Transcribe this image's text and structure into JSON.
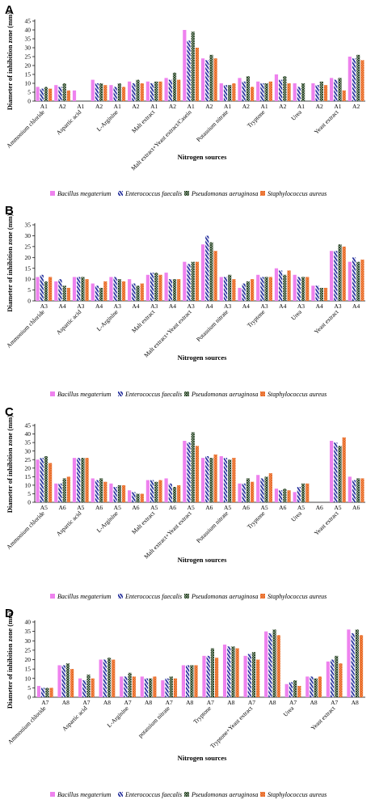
{
  "series_names": [
    "Bacillus megaterium",
    "Enterococcus faecalis",
    "Pseudomonas aeruginosa",
    "Staphylococcus aureus"
  ],
  "colors": {
    "bacillus": "#ee82ee",
    "enterococcus": "#1f2a9a",
    "pseudomonas": "#2e5d2a",
    "staphylococcus": "#ee7a3a"
  },
  "chart_data": [
    {
      "type": "bar",
      "panel_label": "A",
      "ylabel": "Diameter of inhibition zone (mm)",
      "xlabel": "Nitrogen sources",
      "ylim": [
        0,
        45
      ],
      "yticks": [
        0,
        5,
        10,
        15,
        20,
        25,
        30,
        35,
        40,
        45
      ],
      "legend_position": "bottom",
      "groups": [
        {
          "name": "Ammonium chloride",
          "bars": [
            {
              "label": "A1",
              "values": [
                8,
                7,
                8,
                7
              ]
            },
            {
              "label": "A2",
              "values": [
                9,
                8,
                10,
                6
              ]
            }
          ]
        },
        {
          "name": "Aspartic acid",
          "bars": [
            {
              "label": "A1",
              "values": [
                6,
                0,
                0,
                0
              ]
            },
            {
              "label": "A2",
              "values": [
                12,
                10,
                10,
                9
              ]
            }
          ]
        },
        {
          "name": "L-Arginine",
          "bars": [
            {
              "label": "A1",
              "values": [
                9,
                8,
                10,
                8
              ]
            },
            {
              "label": "A2",
              "values": [
                11,
                10,
                12,
                10
              ]
            }
          ]
        },
        {
          "name": "Malt extract",
          "bars": [
            {
              "label": "A1",
              "values": [
                11,
                10,
                11,
                11
              ]
            },
            {
              "label": "A2",
              "values": [
                13,
                12,
                16,
                12
              ]
            }
          ]
        },
        {
          "name": "Malt extract+Yeast extract/Casein",
          "bars": [
            {
              "label": "A1",
              "values": [
                40,
                34,
                39,
                30
              ]
            },
            {
              "label": "A2",
              "values": [
                24,
                23,
                26,
                24
              ]
            }
          ]
        },
        {
          "name": "Potassium nitrate",
          "bars": [
            {
              "label": "A1",
              "values": [
                10,
                9,
                9,
                10
              ]
            },
            {
              "label": "A2",
              "values": [
                13,
                11,
                14,
                8
              ]
            }
          ]
        },
        {
          "name": "Tryptone",
          "bars": [
            {
              "label": "A1",
              "values": [
                11,
                10,
                10,
                11
              ]
            },
            {
              "label": "A2",
              "values": [
                15,
                12,
                14,
                10
              ]
            }
          ]
        },
        {
          "name": "Urea",
          "bars": [
            {
              "label": "A1",
              "values": [
                10,
                8,
                10,
                0
              ]
            },
            {
              "label": "A2",
              "values": [
                10,
                9,
                11,
                9
              ]
            }
          ]
        },
        {
          "name": "Yeast extract",
          "bars": [
            {
              "label": "A1",
              "values": [
                13,
                12,
                13,
                6
              ]
            },
            {
              "label": "A2",
              "values": [
                25,
                24,
                26,
                23
              ]
            }
          ]
        }
      ]
    },
    {
      "type": "bar",
      "panel_label": "B",
      "ylabel": "Diameter of inhibition zone (mm)",
      "xlabel": "Nitrogen sources",
      "ylim": [
        0,
        35
      ],
      "yticks": [
        0,
        5,
        10,
        15,
        20,
        25,
        30,
        35
      ],
      "legend_position": "bottom",
      "groups": [
        {
          "name": "Ammonium chloride",
          "bars": [
            {
              "label": "A3",
              "values": [
                11,
                12,
                9,
                11
              ]
            },
            {
              "label": "A4",
              "values": [
                9,
                10,
                7,
                6
              ]
            }
          ]
        },
        {
          "name": "Aspartic acid",
          "bars": [
            {
              "label": "A3",
              "values": [
                11,
                11,
                11,
                10
              ]
            },
            {
              "label": "A4",
              "values": [
                8,
                7,
                6,
                9
              ]
            }
          ]
        },
        {
          "name": "L-Arginine",
          "bars": [
            {
              "label": "A3",
              "values": [
                11,
                11,
                10,
                9
              ]
            },
            {
              "label": "A4",
              "values": [
                10,
                8,
                7,
                8
              ]
            }
          ]
        },
        {
          "name": "Malt extract",
          "bars": [
            {
              "label": "A3",
              "values": [
                12,
                13,
                13,
                12
              ]
            },
            {
              "label": "A4",
              "values": [
                13,
                10,
                10,
                10
              ]
            }
          ]
        },
        {
          "name": "Malt extract+Yeast extract",
          "bars": [
            {
              "label": "A3",
              "values": [
                18,
                17,
                18,
                18
              ]
            },
            {
              "label": "A4",
              "values": [
                26,
                30,
                27,
                23
              ]
            }
          ]
        },
        {
          "name": "Potassium nitrate",
          "bars": [
            {
              "label": "A3",
              "values": [
                11,
                11,
                12,
                10
              ]
            },
            {
              "label": "A4",
              "values": [
                6,
                8,
                9,
                10
              ]
            }
          ]
        },
        {
          "name": "Tryptone",
          "bars": [
            {
              "label": "A3",
              "values": [
                12,
                11,
                11,
                11
              ]
            },
            {
              "label": "A4",
              "values": [
                15,
                14,
                12,
                14
              ]
            }
          ]
        },
        {
          "name": "Urea",
          "bars": [
            {
              "label": "A3",
              "values": [
                12,
                11,
                11,
                11
              ]
            },
            {
              "label": "A4",
              "values": [
                7,
                7,
                6,
                6
              ]
            }
          ]
        },
        {
          "name": "Yeast extract",
          "bars": [
            {
              "label": "A3",
              "values": [
                23,
                23,
                26,
                25
              ]
            },
            {
              "label": "A4",
              "values": [
                18,
                20,
                18,
                19
              ]
            }
          ]
        }
      ]
    },
    {
      "type": "bar",
      "panel_label": "C",
      "ylabel": "Diameter of inhibition zone (mm)",
      "xlabel": "Nitrogen sources",
      "ylim": [
        0,
        45
      ],
      "yticks": [
        0,
        5,
        10,
        15,
        20,
        25,
        30,
        35,
        40,
        45
      ],
      "legend_position": "bottom",
      "groups": [
        {
          "name": "Ammonium chloride",
          "bars": [
            {
              "label": "A5",
              "values": [
                25,
                26,
                27,
                23
              ]
            },
            {
              "label": "A6",
              "values": [
                11,
                11,
                14,
                15
              ]
            }
          ]
        },
        {
          "name": "Aspartic acid",
          "bars": [
            {
              "label": "A5",
              "values": [
                26,
                26,
                26,
                26
              ]
            },
            {
              "label": "A6",
              "values": [
                14,
                13,
                14,
                12
              ]
            }
          ]
        },
        {
          "name": "L-Arginine",
          "bars": [
            {
              "label": "A5",
              "values": [
                11,
                9,
                10,
                10
              ]
            },
            {
              "label": "A6",
              "values": [
                7,
                6,
                5,
                5
              ]
            }
          ]
        },
        {
          "name": "Malt extract",
          "bars": [
            {
              "label": "A5",
              "values": [
                13,
                13,
                12,
                13
              ]
            },
            {
              "label": "A6",
              "values": [
                14,
                11,
                9,
                10
              ]
            }
          ]
        },
        {
          "name": "Malt extract+Yeast extract",
          "bars": [
            {
              "label": "A5",
              "values": [
                36,
                35,
                41,
                33
              ]
            },
            {
              "label": "A6",
              "values": [
                26,
                27,
                26,
                28
              ]
            }
          ]
        },
        {
          "name": "Potassium nitrate",
          "bars": [
            {
              "label": "A5",
              "values": [
                27,
                26,
                25,
                26
              ]
            },
            {
              "label": "A6",
              "values": [
                11,
                11,
                14,
                12
              ]
            }
          ]
        },
        {
          "name": "Tryptone",
          "bars": [
            {
              "label": "A5",
              "values": [
                16,
                14,
                15,
                17
              ]
            },
            {
              "label": "A6",
              "values": [
                8,
                7,
                8,
                7
              ]
            }
          ]
        },
        {
          "name": "Urea",
          "bars": [
            {
              "label": "A5",
              "values": [
                6,
                9,
                11,
                11
              ]
            },
            {
              "label": "A6",
              "values": [
                0,
                0,
                0,
                0
              ]
            }
          ]
        },
        {
          "name": "Yeast extract",
          "bars": [
            {
              "label": "A5",
              "values": [
                36,
                35,
                33,
                38
              ]
            },
            {
              "label": "A6",
              "values": [
                15,
                13,
                14,
                14
              ]
            }
          ]
        }
      ]
    },
    {
      "type": "bar",
      "panel_label": "D",
      "ylabel": "Diameter of inhibition zone (mm)",
      "xlabel": "Nitrogen sources",
      "ylim": [
        0,
        40
      ],
      "yticks": [
        0,
        5,
        10,
        15,
        20,
        25,
        30,
        35,
        40
      ],
      "legend_position": "bottom",
      "groups": [
        {
          "name": "Ammonium chloride",
          "bars": [
            {
              "label": "A7",
              "values": [
                6,
                5,
                5,
                5
              ]
            },
            {
              "label": "A8",
              "values": [
                17,
                17,
                18,
                15
              ]
            }
          ]
        },
        {
          "name": "Aspartic acid",
          "bars": [
            {
              "label": "A7",
              "values": [
                10,
                9,
                12,
                10
              ]
            },
            {
              "label": "A8",
              "values": [
                20,
                20,
                21,
                20
              ]
            }
          ]
        },
        {
          "name": "L-Arginine",
          "bars": [
            {
              "label": "A7",
              "values": [
                11,
                11,
                13,
                11
              ]
            },
            {
              "label": "A8",
              "values": [
                11,
                10,
                10,
                11
              ]
            }
          ]
        },
        {
          "name": "potassium nitrate",
          "bars": [
            {
              "label": "A7",
              "values": [
                9,
                10,
                11,
                10
              ]
            },
            {
              "label": "A8",
              "values": [
                17,
                17,
                17,
                17
              ]
            }
          ]
        },
        {
          "name": "Tryptone",
          "bars": [
            {
              "label": "A7",
              "values": [
                22,
                22,
                26,
                21
              ]
            },
            {
              "label": "A8",
              "values": [
                28,
                27,
                27,
                26
              ]
            }
          ]
        },
        {
          "name": "Tryptone+Yeast extract",
          "bars": [
            {
              "label": "A7",
              "values": [
                22,
                23,
                24,
                20
              ]
            },
            {
              "label": "A8",
              "values": [
                35,
                34,
                36,
                33
              ]
            }
          ]
        },
        {
          "name": "Urea",
          "bars": [
            {
              "label": "A7",
              "values": [
                7,
                8,
                9,
                6
              ]
            },
            {
              "label": "A8",
              "values": [
                11,
                11,
                10,
                11
              ]
            }
          ]
        },
        {
          "name": "Yeast extract",
          "bars": [
            {
              "label": "A7",
              "values": [
                19,
                20,
                22,
                18
              ]
            },
            {
              "label": "A8",
              "values": [
                36,
                34,
                36,
                33
              ]
            }
          ]
        }
      ]
    }
  ]
}
